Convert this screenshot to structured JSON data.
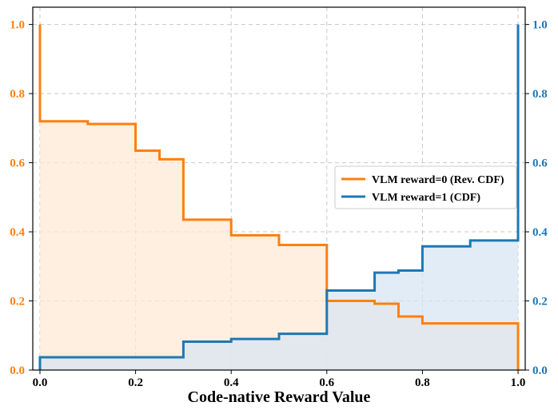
{
  "chart_data": {
    "type": "line",
    "step": "post",
    "title": "",
    "xlabel": "Code-native Reward Value",
    "ylabel_left": "",
    "ylabel_right": "",
    "xlim": [
      -0.015,
      1.015
    ],
    "ylim": [
      0,
      1.05
    ],
    "xticks": [
      "0.0",
      "0.2",
      "0.4",
      "0.6",
      "0.8",
      "1.0"
    ],
    "yticks_left": [
      "0.0",
      "0.2",
      "0.4",
      "0.6",
      "0.8",
      "1.0"
    ],
    "yticks_right": [
      "0.0",
      "0.2",
      "0.4",
      "0.6",
      "0.8",
      "1.0"
    ],
    "grid": true,
    "legend_position": "center-right",
    "left_axis_color": "#ff7f0e",
    "right_axis_color": "#1f77b4",
    "series": [
      {
        "name": "VLM reward=0 (Rev. CDF)",
        "axis": "left",
        "color": "#ff7f0e",
        "fill": "#fde9d6",
        "x": [
          0.0,
          0.0,
          0.1,
          0.2,
          0.25,
          0.3,
          0.4,
          0.5,
          0.6,
          0.7,
          0.75,
          0.8,
          0.9,
          1.0
        ],
        "y": [
          1.0,
          0.72,
          0.712,
          0.635,
          0.61,
          0.435,
          0.39,
          0.362,
          0.2,
          0.192,
          0.155,
          0.135,
          0.135,
          0.0
        ]
      },
      {
        "name": "VLM reward=1 (CDF)",
        "axis": "right",
        "color": "#1f77b4",
        "fill": "#d8e6f3",
        "x": [
          0.0,
          0.0,
          0.1,
          0.2,
          0.25,
          0.3,
          0.4,
          0.5,
          0.6,
          0.7,
          0.75,
          0.8,
          0.9,
          1.0
        ],
        "y": [
          0.0,
          0.037,
          0.037,
          0.037,
          0.037,
          0.082,
          0.09,
          0.105,
          0.23,
          0.282,
          0.288,
          0.358,
          0.375,
          1.0
        ]
      }
    ]
  }
}
